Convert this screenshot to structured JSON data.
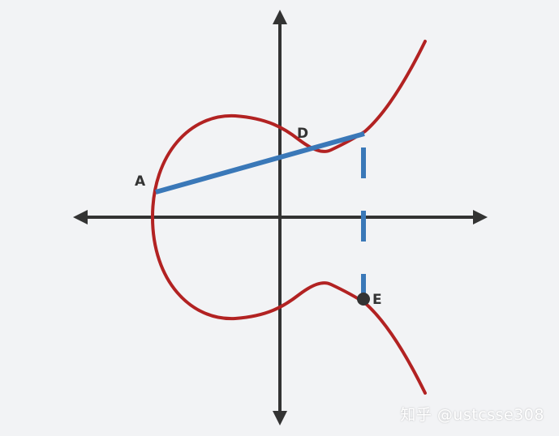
{
  "points": {
    "a": "A",
    "d": "D",
    "e": "E"
  },
  "watermark": "知乎 @ustcsse308",
  "colors": {
    "background": "#f2f3f5",
    "axis": "#333333",
    "curve": "#b22222",
    "line": "#3a78b8",
    "point": "#333333"
  },
  "icons": {
    "x_axis_arrows": "double-arrow-horizontal",
    "y_axis_arrows": "double-arrow-vertical"
  }
}
